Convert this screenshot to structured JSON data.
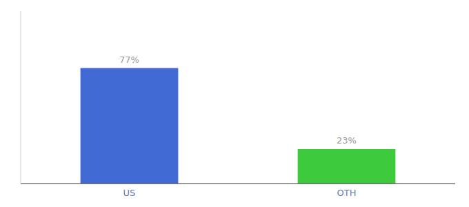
{
  "chart_data": {
    "type": "bar",
    "categories": [
      "US",
      "OTH"
    ],
    "values": [
      77,
      23
    ],
    "value_labels": [
      "77%",
      "23%"
    ],
    "colors": [
      "#4169d4",
      "#3dcb3d"
    ],
    "ylim": [
      0,
      115
    ],
    "data_labels": true,
    "tick_labels": "x",
    "grid": false
  }
}
